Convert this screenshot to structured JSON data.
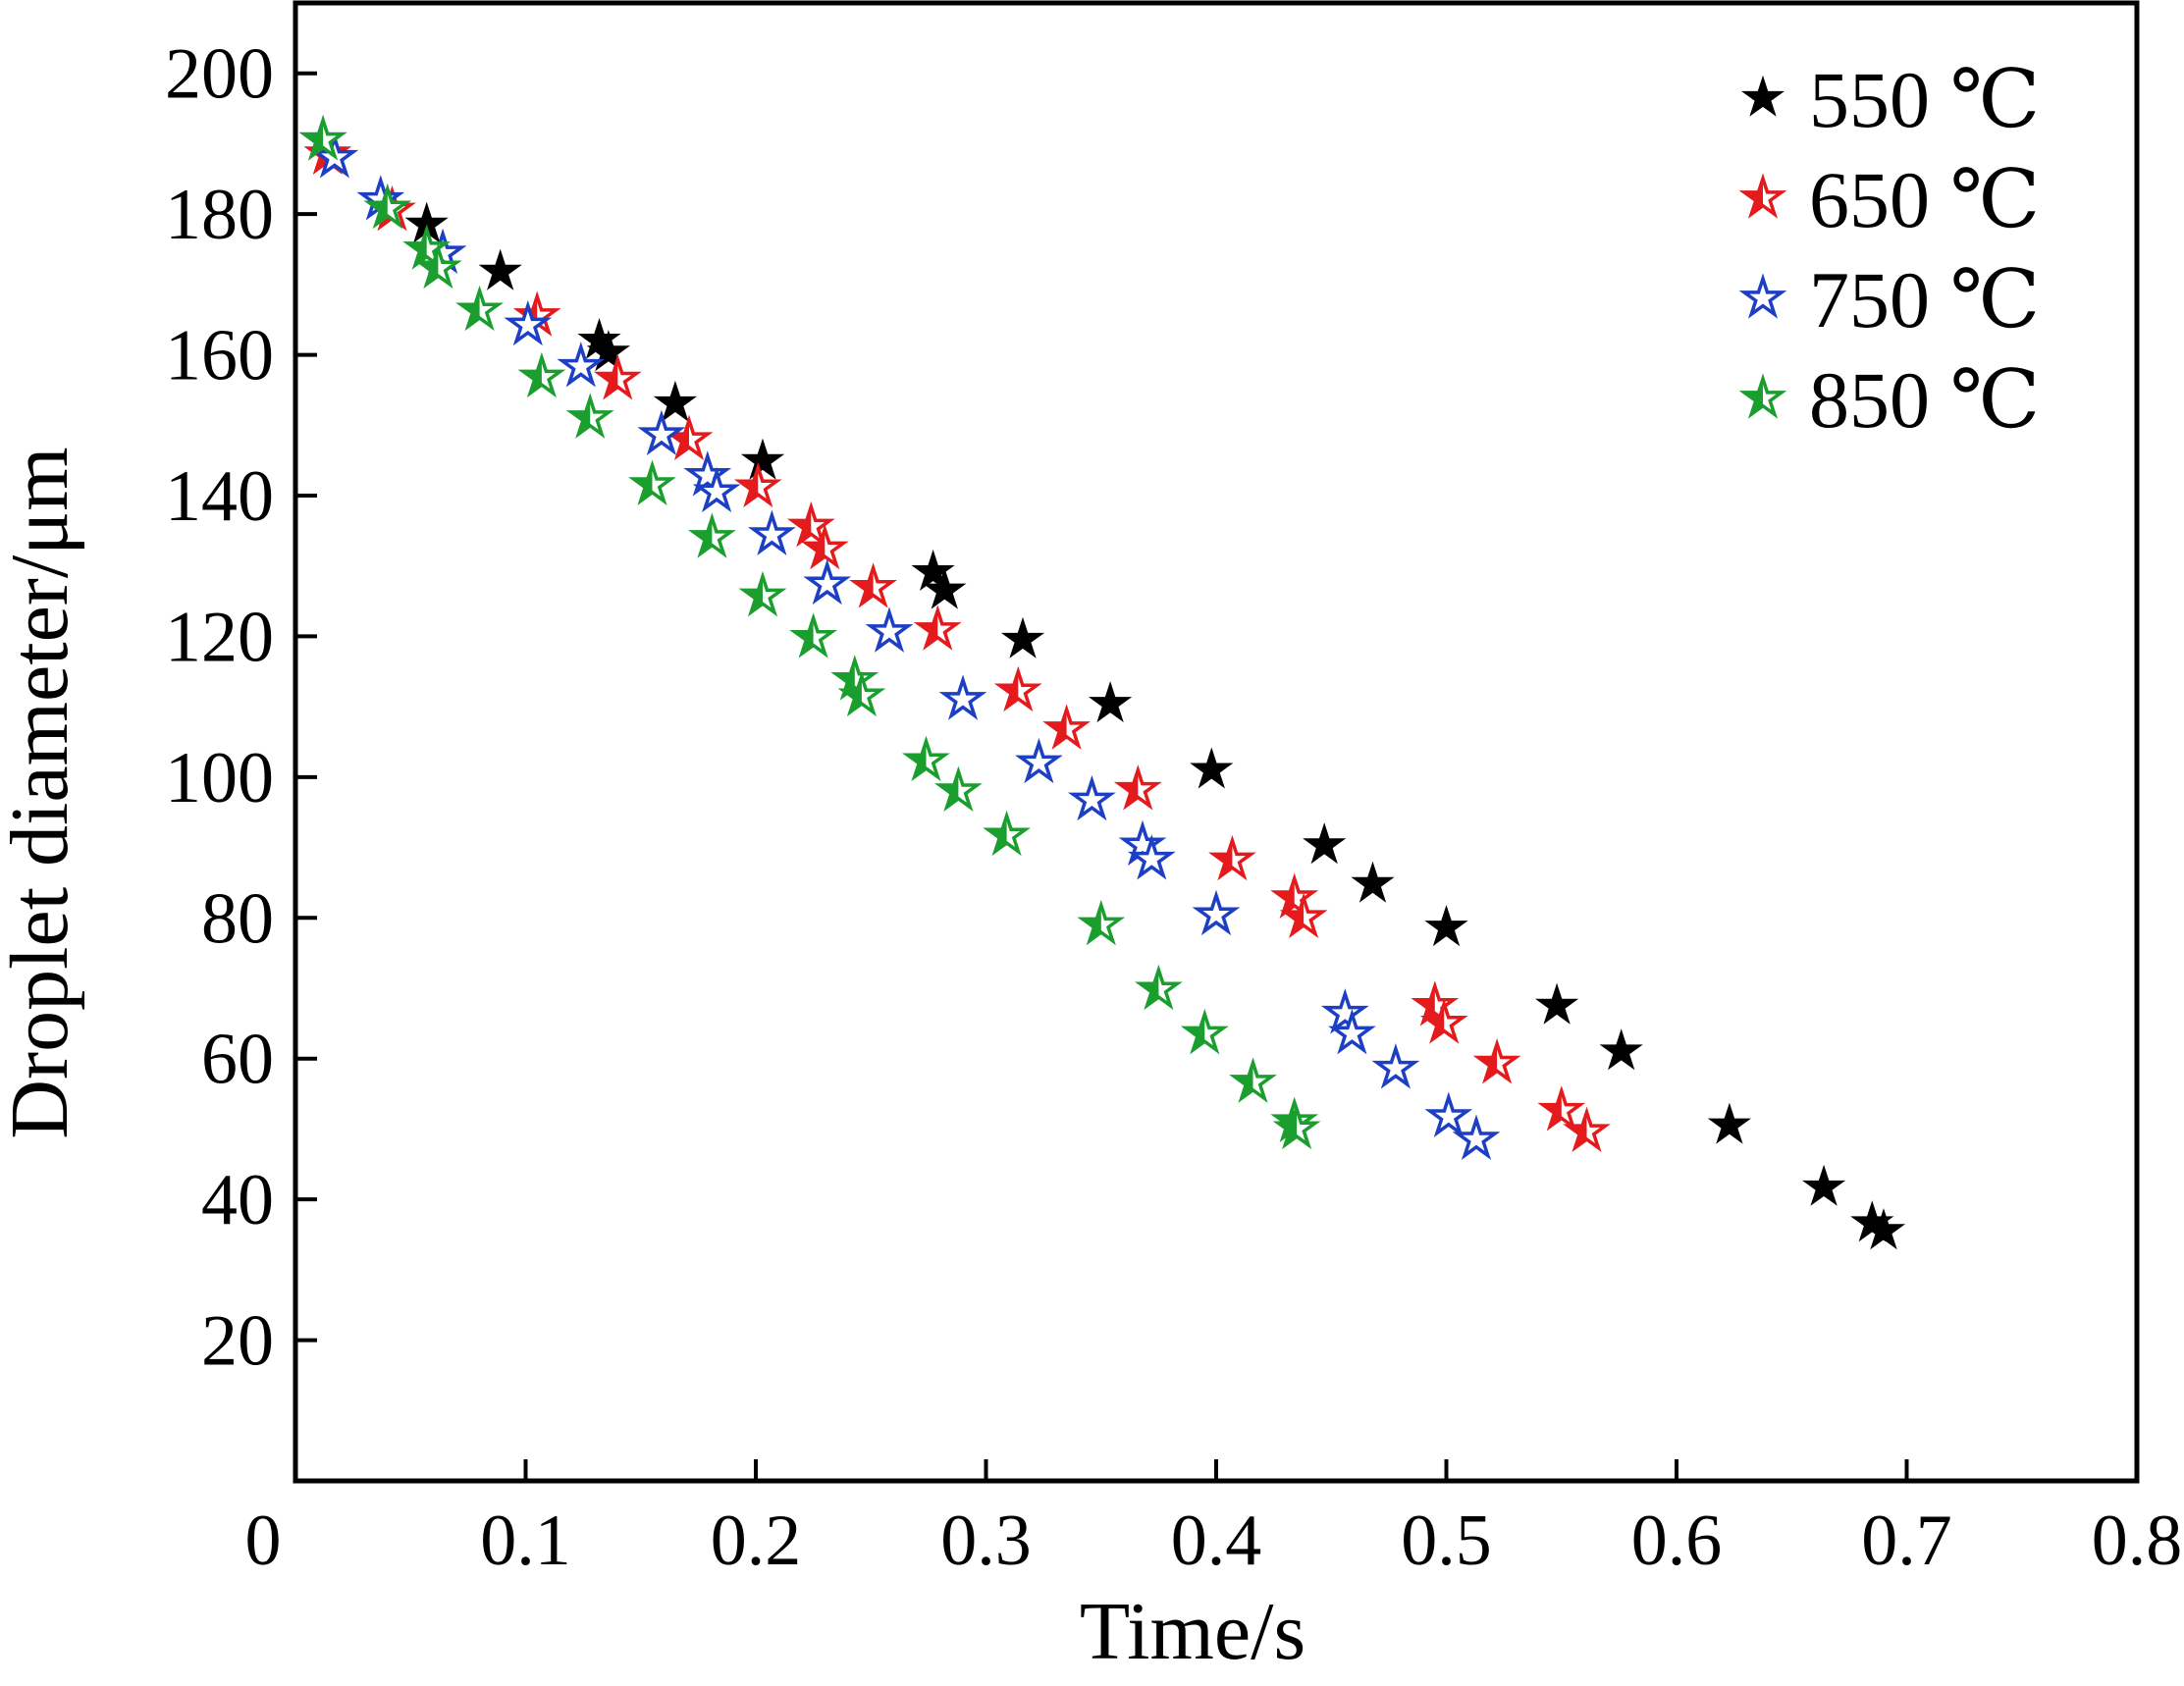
{
  "chart_data": {
    "type": "scatter",
    "xlabel": "Time/s",
    "ylabel": "Droplet diameter/μm",
    "xlim": [
      0,
      0.8
    ],
    "ylim": [
      0,
      210
    ],
    "xticks": [
      0.1,
      0.2,
      0.3,
      0.4,
      0.5,
      0.6,
      0.7,
      0.8
    ],
    "xtick_labels": [
      "0.1",
      "0.2",
      "0.3",
      "0.4",
      "0.5",
      "0.6",
      "0.7",
      "0.8"
    ],
    "yticks": [
      20,
      40,
      60,
      80,
      100,
      120,
      140,
      160,
      180,
      200
    ],
    "ytick_labels": [
      "20",
      "40",
      "60",
      "80",
      "100",
      "120",
      "140",
      "160",
      "180",
      "200"
    ],
    "origin_label": "0",
    "legend_position": "top-right",
    "series": [
      {
        "name": "550 ℃",
        "color": "#000000",
        "marker": "filled-star",
        "points": [
          [
            0.012,
            190.5
          ],
          [
            0.057,
            178.5
          ],
          [
            0.089,
            171.8
          ],
          [
            0.132,
            162.0
          ],
          [
            0.136,
            160.3
          ],
          [
            0.165,
            153.1
          ],
          [
            0.203,
            144.9
          ],
          [
            0.277,
            129.1
          ],
          [
            0.282,
            126.5
          ],
          [
            0.316,
            119.5
          ],
          [
            0.354,
            110.4
          ],
          [
            0.398,
            101.0
          ],
          [
            0.447,
            90.3
          ],
          [
            0.468,
            84.8
          ],
          [
            0.5,
            78.6
          ],
          [
            0.548,
            67.5
          ],
          [
            0.576,
            61.0
          ],
          [
            0.623,
            50.5
          ],
          [
            0.664,
            41.7
          ],
          [
            0.685,
            36.6
          ],
          [
            0.69,
            35.5
          ]
        ]
      },
      {
        "name": "650 ℃",
        "color": "#e41a1c",
        "marker": "half-filled-star",
        "points": [
          [
            0.014,
            188.5
          ],
          [
            0.042,
            180.5
          ],
          [
            0.105,
            165.5
          ],
          [
            0.14,
            156.5
          ],
          [
            0.171,
            147.9
          ],
          [
            0.201,
            141.2
          ],
          [
            0.224,
            135.6
          ],
          [
            0.23,
            132.4
          ],
          [
            0.251,
            126.9
          ],
          [
            0.279,
            120.9
          ],
          [
            0.314,
            112.2
          ],
          [
            0.335,
            106.8
          ],
          [
            0.366,
            98.2
          ],
          [
            0.407,
            88.2
          ],
          [
            0.434,
            82.8
          ],
          [
            0.438,
            80.0
          ],
          [
            0.495,
            67.5
          ],
          [
            0.499,
            65.0
          ],
          [
            0.522,
            59.3
          ],
          [
            0.55,
            52.6
          ],
          [
            0.561,
            49.6
          ]
        ]
      },
      {
        "name": "750 ℃",
        "color": "#1c3fc4",
        "marker": "open-star",
        "points": [
          [
            0.012,
            190.5
          ],
          [
            0.017,
            188.0
          ],
          [
            0.037,
            182.0
          ],
          [
            0.064,
            174.4
          ],
          [
            0.101,
            164.2
          ],
          [
            0.124,
            158.3
          ],
          [
            0.159,
            148.6
          ],
          [
            0.179,
            142.8
          ],
          [
            0.183,
            140.5
          ],
          [
            0.207,
            134.4
          ],
          [
            0.231,
            127.4
          ],
          [
            0.258,
            120.6
          ],
          [
            0.29,
            111.0
          ],
          [
            0.323,
            102.0
          ],
          [
            0.346,
            96.7
          ],
          [
            0.368,
            90.3
          ],
          [
            0.372,
            88.3
          ],
          [
            0.4,
            80.4
          ],
          [
            0.456,
            66.4
          ],
          [
            0.459,
            63.5
          ],
          [
            0.478,
            58.6
          ],
          [
            0.501,
            51.7
          ],
          [
            0.513,
            48.5
          ]
        ]
      },
      {
        "name": "850 ℃",
        "color": "#1a9e2e",
        "marker": "half-filled-star",
        "points": [
          [
            0.012,
            190.5
          ],
          [
            0.04,
            180.8
          ],
          [
            0.057,
            175.0
          ],
          [
            0.062,
            172.3
          ],
          [
            0.08,
            166.3
          ],
          [
            0.107,
            156.8
          ],
          [
            0.128,
            151.0
          ],
          [
            0.155,
            141.5
          ],
          [
            0.181,
            134.0
          ],
          [
            0.203,
            125.7
          ],
          [
            0.225,
            119.8
          ],
          [
            0.243,
            113.8
          ],
          [
            0.246,
            111.5
          ],
          [
            0.274,
            102.3
          ],
          [
            0.288,
            98.0
          ],
          [
            0.309,
            91.7
          ],
          [
            0.35,
            79.0
          ],
          [
            0.375,
            69.8
          ],
          [
            0.395,
            63.5
          ],
          [
            0.416,
            56.6
          ],
          [
            0.434,
            51.0
          ],
          [
            0.435,
            50.0
          ]
        ]
      }
    ]
  }
}
